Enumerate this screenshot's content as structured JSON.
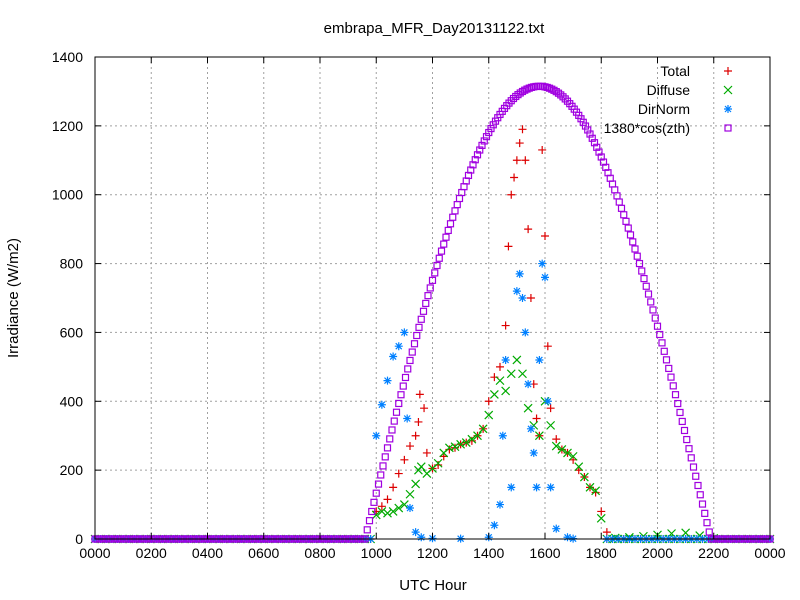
{
  "chart_data": {
    "type": "scatter",
    "title": "embrapa_MFR_Day20131122.txt",
    "xlabel": "UTC Hour",
    "ylabel": "Irradiance (W/m2)",
    "xlim": [
      0,
      2400
    ],
    "ylim": [
      0,
      1400
    ],
    "x_ticks": [
      "0000",
      "0200",
      "0400",
      "0600",
      "0800",
      "1000",
      "1200",
      "1400",
      "1600",
      "1800",
      "2000",
      "2200",
      "0000"
    ],
    "y_ticks": [
      "0",
      "200",
      "400",
      "600",
      "800",
      "1000",
      "1200",
      "1400"
    ],
    "grid": true,
    "legend_position": "top-right",
    "series": [
      {
        "name": "Total",
        "color": "#dd0000",
        "marker": "plus",
        "points": [
          [
            1000,
            80
          ],
          [
            1020,
            95
          ],
          [
            1040,
            115
          ],
          [
            1060,
            150
          ],
          [
            1080,
            190
          ],
          [
            1100,
            230
          ],
          [
            1120,
            270
          ],
          [
            1140,
            300
          ],
          [
            1150,
            340
          ],
          [
            1155,
            420
          ],
          [
            1170,
            380
          ],
          [
            1180,
            250
          ],
          [
            1200,
            205
          ],
          [
            1220,
            215
          ],
          [
            1240,
            240
          ],
          [
            1260,
            260
          ],
          [
            1280,
            265
          ],
          [
            1300,
            275
          ],
          [
            1320,
            280
          ],
          [
            1340,
            285
          ],
          [
            1360,
            300
          ],
          [
            1380,
            320
          ],
          [
            1400,
            400
          ],
          [
            1420,
            470
          ],
          [
            1440,
            500
          ],
          [
            1460,
            620
          ],
          [
            1470,
            850
          ],
          [
            1480,
            1000
          ],
          [
            1490,
            1050
          ],
          [
            1500,
            1100
          ],
          [
            1510,
            1150
          ],
          [
            1520,
            1190
          ],
          [
            1530,
            1100
          ],
          [
            1540,
            900
          ],
          [
            1550,
            700
          ],
          [
            1560,
            450
          ],
          [
            1570,
            350
          ],
          [
            1580,
            300
          ],
          [
            1590,
            1130
          ],
          [
            1600,
            880
          ],
          [
            1610,
            560
          ],
          [
            1620,
            380
          ],
          [
            1640,
            290
          ],
          [
            1660,
            260
          ],
          [
            1680,
            250
          ],
          [
            1700,
            230
          ],
          [
            1720,
            200
          ],
          [
            1740,
            180
          ],
          [
            1760,
            150
          ],
          [
            1780,
            135
          ],
          [
            1800,
            80
          ],
          [
            1820,
            20
          ]
        ]
      },
      {
        "name": "Diffuse",
        "color": "#00aa00",
        "marker": "cross",
        "points": [
          [
            1000,
            70
          ],
          [
            1020,
            80
          ],
          [
            1040,
            75
          ],
          [
            1060,
            80
          ],
          [
            1080,
            90
          ],
          [
            1100,
            100
          ],
          [
            1120,
            130
          ],
          [
            1140,
            160
          ],
          [
            1150,
            200
          ],
          [
            1160,
            210
          ],
          [
            1180,
            190
          ],
          [
            1200,
            205
          ],
          [
            1220,
            220
          ],
          [
            1240,
            250
          ],
          [
            1260,
            265
          ],
          [
            1280,
            268
          ],
          [
            1300,
            275
          ],
          [
            1320,
            280
          ],
          [
            1340,
            290
          ],
          [
            1360,
            300
          ],
          [
            1380,
            320
          ],
          [
            1400,
            360
          ],
          [
            1420,
            420
          ],
          [
            1440,
            460
          ],
          [
            1460,
            430
          ],
          [
            1480,
            480
          ],
          [
            1500,
            520
          ],
          [
            1520,
            480
          ],
          [
            1540,
            380
          ],
          [
            1560,
            330
          ],
          [
            1580,
            300
          ],
          [
            1600,
            400
          ],
          [
            1620,
            330
          ],
          [
            1640,
            270
          ],
          [
            1660,
            260
          ],
          [
            1680,
            250
          ],
          [
            1700,
            240
          ],
          [
            1720,
            210
          ],
          [
            1740,
            180
          ],
          [
            1760,
            150
          ],
          [
            1780,
            140
          ],
          [
            1800,
            60
          ],
          [
            1850,
            3
          ],
          [
            1900,
            5
          ],
          [
            1950,
            8
          ],
          [
            2000,
            12
          ],
          [
            2050,
            16
          ],
          [
            2100,
            18
          ],
          [
            2150,
            10
          ],
          [
            2200,
            2
          ]
        ]
      },
      {
        "name": "DirNorm",
        "color": "#0080ff",
        "marker": "star",
        "points": [
          [
            1000,
            300
          ],
          [
            1020,
            390
          ],
          [
            1040,
            460
          ],
          [
            1060,
            530
          ],
          [
            1080,
            560
          ],
          [
            1100,
            600
          ],
          [
            1110,
            350
          ],
          [
            1120,
            90
          ],
          [
            1140,
            20
          ],
          [
            1160,
            5
          ],
          [
            1200,
            2
          ],
          [
            1300,
            1
          ],
          [
            1400,
            5
          ],
          [
            1420,
            40
          ],
          [
            1440,
            100
          ],
          [
            1450,
            300
          ],
          [
            1460,
            520
          ],
          [
            1480,
            150
          ],
          [
            1500,
            720
          ],
          [
            1510,
            770
          ],
          [
            1520,
            700
          ],
          [
            1530,
            600
          ],
          [
            1540,
            450
          ],
          [
            1550,
            320
          ],
          [
            1560,
            250
          ],
          [
            1570,
            150
          ],
          [
            1580,
            520
          ],
          [
            1590,
            800
          ],
          [
            1600,
            760
          ],
          [
            1610,
            400
          ],
          [
            1620,
            150
          ],
          [
            1640,
            30
          ],
          [
            1680,
            5
          ],
          [
            1700,
            1
          ]
        ]
      },
      {
        "name": "1380*cos(zth)",
        "color": "#a000e0",
        "marker": "square",
        "envelope": {
          "start": 960,
          "peak_x": 1580,
          "peak_y": 1315,
          "end": 2190
        }
      }
    ]
  }
}
